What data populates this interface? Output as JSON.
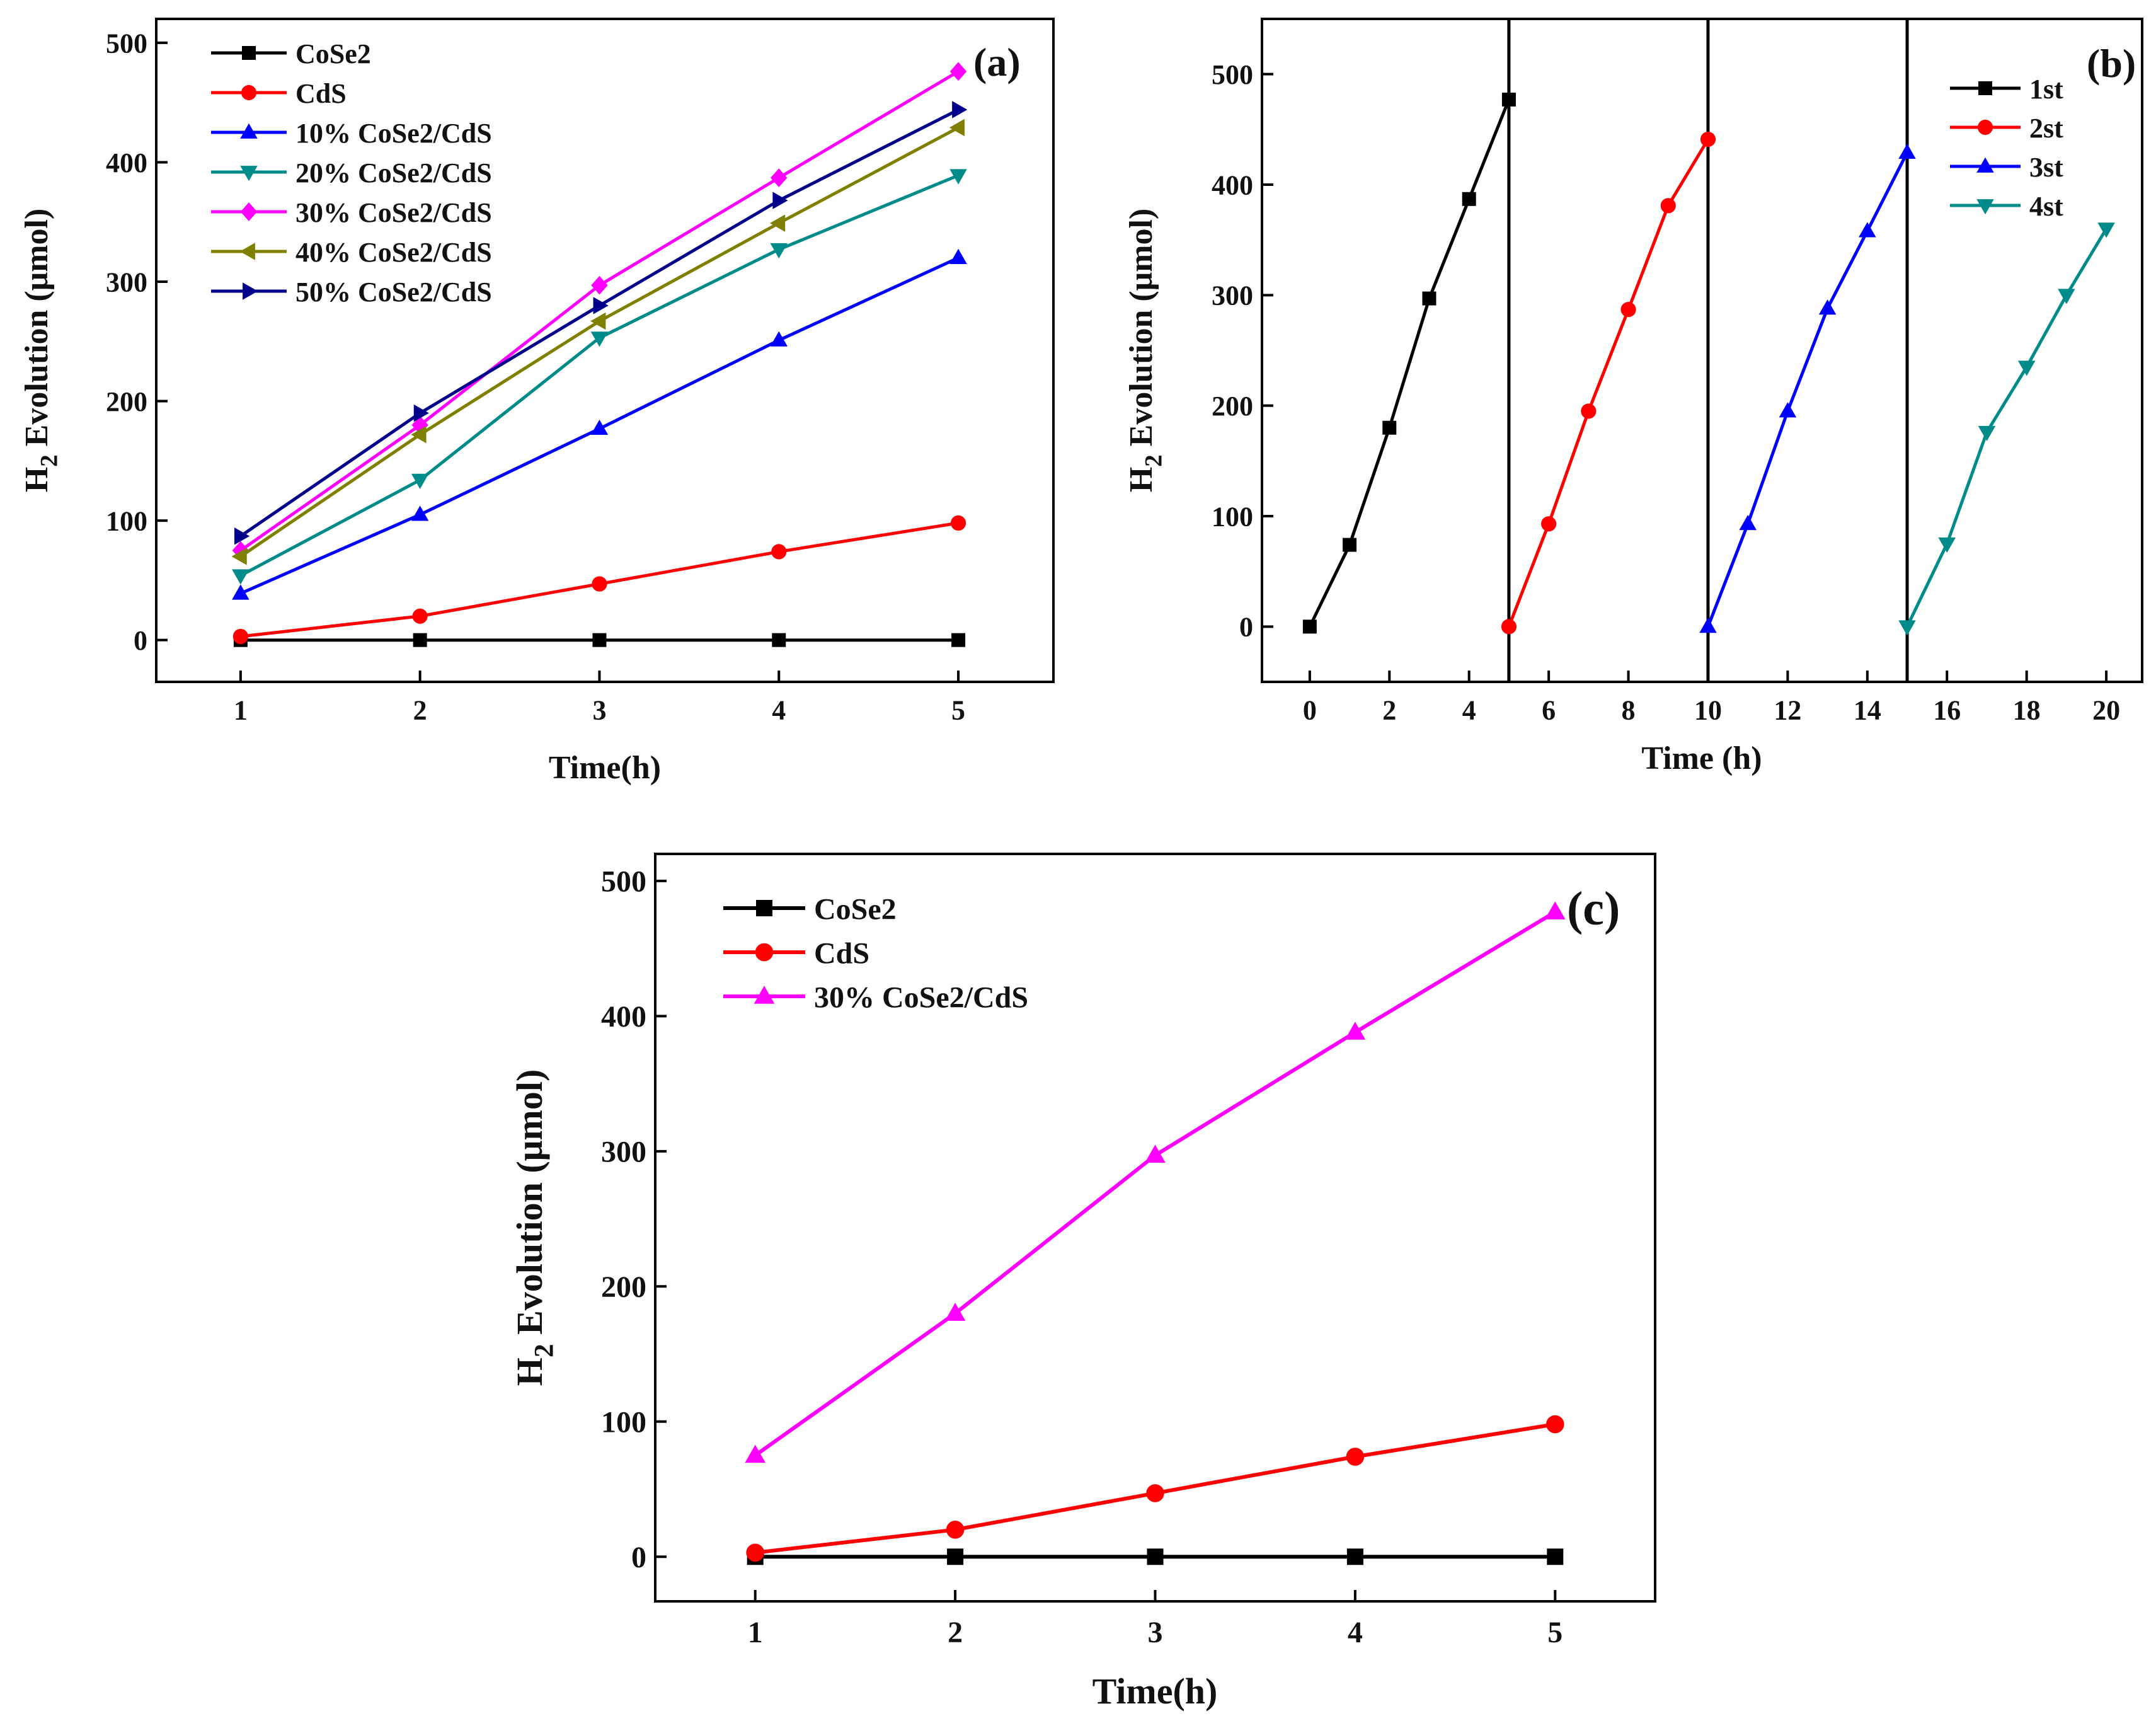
{
  "chart_data": [
    {
      "type": "line",
      "panel_label": "(a)",
      "xlabel": "Time(h)",
      "ylabel_main": "H",
      "ylabel_sub": "2",
      "ylabel_rest": " Evolution (μmol)",
      "xlim": [
        0.53,
        5.53
      ],
      "ylim": [
        -35,
        520
      ],
      "xticks": [
        1,
        2,
        3,
        4,
        5
      ],
      "yticks": [
        0,
        100,
        200,
        300,
        400,
        500
      ],
      "legend_position": "top-left",
      "x": [
        1,
        2,
        3,
        4,
        5
      ],
      "series": [
        {
          "name": "CoSe2",
          "color": "#000000",
          "marker": "square",
          "values": [
            0,
            0,
            0,
            0,
            0
          ]
        },
        {
          "name": "CdS",
          "color": "#ff0000",
          "marker": "circle",
          "values": [
            3,
            20,
            47,
            74,
            98
          ]
        },
        {
          "name": "10% CoSe2/CdS",
          "color": "#0000ff",
          "marker": "triangle-up",
          "values": [
            39,
            105,
            177,
            251,
            320
          ]
        },
        {
          "name": "20% CoSe2/CdS",
          "color": "#008b8b",
          "marker": "triangle-down",
          "values": [
            54,
            134,
            253,
            327,
            389
          ]
        },
        {
          "name": "30% CoSe2/CdS",
          "color": "#ff00ff",
          "marker": "diamond",
          "values": [
            75,
            180,
            297,
            387,
            476
          ]
        },
        {
          "name": "40% CoSe2/CdS",
          "color": "#808000",
          "marker": "triangle-left",
          "values": [
            70,
            172,
            267,
            349,
            429
          ]
        },
        {
          "name": "50% CoSe2/CdS",
          "color": "#00008b",
          "marker": "triangle-right",
          "values": [
            87,
            190,
            280,
            368,
            444
          ]
        }
      ]
    },
    {
      "type": "line",
      "panel_label": "(b)",
      "xlabel": "Time (h)",
      "ylabel_main": "H",
      "ylabel_sub": "2",
      "ylabel_rest": " Evolution (μmol)",
      "xlim": [
        -1.2,
        20.9
      ],
      "ylim": [
        -50,
        550
      ],
      "xticks": [
        0,
        2,
        4,
        6,
        8,
        10,
        12,
        14,
        16,
        18,
        20
      ],
      "yticks": [
        0,
        100,
        200,
        300,
        400,
        500
      ],
      "cycle_dividers": [
        5,
        10,
        15
      ],
      "legend_position": "top-right",
      "series": [
        {
          "name": "1st",
          "color": "#000000",
          "marker": "square",
          "x": [
            0,
            1,
            2,
            3,
            4,
            5
          ],
          "values": [
            0,
            74,
            180,
            297,
            387,
            477
          ]
        },
        {
          "name": "2st",
          "color": "#ff0000",
          "marker": "circle",
          "x": [
            5,
            6,
            7,
            8,
            9,
            10
          ],
          "values": [
            0,
            93,
            195,
            287,
            381,
            441
          ]
        },
        {
          "name": "3st",
          "color": "#0000ff",
          "marker": "triangle-up",
          "x": [
            10,
            11,
            12,
            13,
            14,
            15
          ],
          "values": [
            0,
            93,
            195,
            288,
            358,
            429
          ]
        },
        {
          "name": "4st",
          "color": "#008b8b",
          "marker": "triangle-down",
          "x": [
            15,
            16,
            17,
            18,
            19,
            20
          ],
          "values": [
            0,
            75,
            176,
            235,
            300,
            360
          ]
        }
      ]
    },
    {
      "type": "line",
      "panel_label": "(c)",
      "xlabel": "Time(h)",
      "ylabel_main": "H",
      "ylabel_sub": "2",
      "ylabel_rest": " Evolution (μmol)",
      "xlim": [
        0.5,
        5.5
      ],
      "ylim": [
        -33,
        520
      ],
      "xticks": [
        1,
        2,
        3,
        4,
        5
      ],
      "yticks": [
        0,
        100,
        200,
        300,
        400,
        500
      ],
      "legend_position": "top-left",
      "x": [
        1,
        2,
        3,
        4,
        5
      ],
      "series": [
        {
          "name": "CoSe2",
          "color": "#000000",
          "marker": "square",
          "values": [
            0,
            0,
            0,
            0,
            0
          ]
        },
        {
          "name": "CdS",
          "color": "#ff0000",
          "marker": "circle",
          "values": [
            3,
            20,
            47,
            74,
            98
          ]
        },
        {
          "name": "30% CoSe2/CdS",
          "color": "#ff00ff",
          "marker": "triangle-up",
          "values": [
            75,
            180,
            297,
            388,
            477
          ]
        }
      ]
    }
  ]
}
